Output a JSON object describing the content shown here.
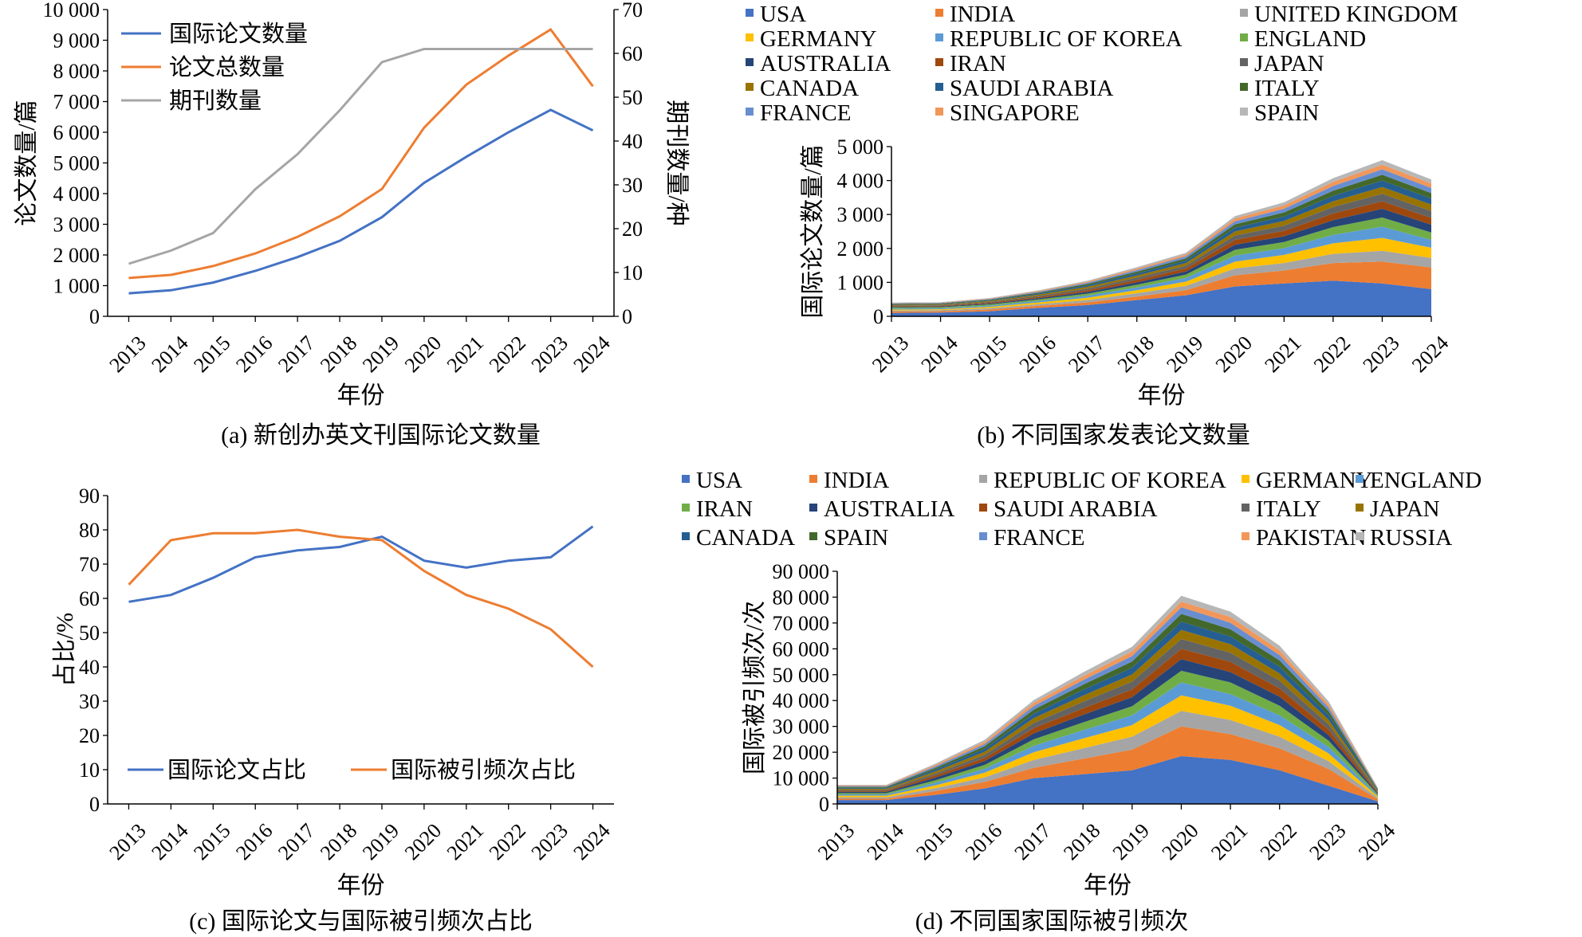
{
  "figure": {
    "background": "#ffffff"
  },
  "chart_data": [
    {
      "id": "a",
      "type": "line",
      "caption": "(a) 新创办英文刊国际论文数量",
      "xlabel": "年份",
      "ylabel": "论文数量/篇",
      "y2label": "期刊数量/种",
      "x": [
        "2013",
        "2014",
        "2015",
        "2016",
        "2017",
        "2018",
        "2019",
        "2020",
        "2021",
        "2022",
        "2023",
        "2024"
      ],
      "ylim": [
        0,
        10000
      ],
      "yticks": [
        0,
        1000,
        2000,
        3000,
        4000,
        5000,
        6000,
        7000,
        8000,
        9000,
        10000
      ],
      "yticklabels": [
        "0",
        "1 000",
        "2 000",
        "3 000",
        "4 000",
        "5 000",
        "6 000",
        "7 000",
        "8 000",
        "9 000",
        "10 000"
      ],
      "y2lim": [
        0,
        70
      ],
      "y2ticks": [
        0,
        10,
        20,
        30,
        40,
        50,
        60,
        70
      ],
      "y2ticklabels": [
        "0",
        "10",
        "20",
        "30",
        "40",
        "50",
        "60",
        "70"
      ],
      "grid": false,
      "legend_position": "top-left",
      "series": [
        {
          "name": "国际论文数量",
          "axis": "left",
          "color": "#4472c4",
          "values": [
            750,
            850,
            1100,
            1480,
            1930,
            2460,
            3230,
            4350,
            5200,
            6000,
            6730,
            6060
          ]
        },
        {
          "name": "论文总数量",
          "axis": "left",
          "color": "#ed7d31",
          "values": [
            1250,
            1350,
            1640,
            2050,
            2590,
            3260,
            4150,
            6150,
            7550,
            8500,
            9350,
            7500
          ]
        },
        {
          "name": "期刊数量",
          "axis": "right",
          "color": "#a5a5a5",
          "values": [
            12,
            15,
            19,
            29,
            37,
            47,
            58,
            61,
            61,
            61,
            61,
            61
          ]
        }
      ]
    },
    {
      "id": "b",
      "type": "area",
      "stacked": true,
      "caption": "(b) 不同国家发表论文数量",
      "xlabel": "年份",
      "ylabel": "国际论文数量/篇",
      "x": [
        "2013",
        "2014",
        "2015",
        "2016",
        "2017",
        "2018",
        "2019",
        "2020",
        "2021",
        "2022",
        "2023",
        "2024"
      ],
      "ylim": [
        0,
        5000
      ],
      "yticks": [
        0,
        1000,
        2000,
        3000,
        4000,
        5000
      ],
      "yticklabels": [
        "0",
        "1 000",
        "2 000",
        "3 000",
        "4 000",
        "5 000"
      ],
      "grid": false,
      "legend_position": "top",
      "series": [
        {
          "name": "USA",
          "color": "#4472c4",
          "values": [
            100,
            110,
            150,
            250,
            330,
            480,
            620,
            880,
            970,
            1050,
            970,
            800
          ]
        },
        {
          "name": "INDIA",
          "color": "#ed7d31",
          "values": [
            40,
            40,
            50,
            60,
            80,
            100,
            150,
            330,
            380,
            520,
            640,
            640
          ]
        },
        {
          "name": "UNITED KINGDOM",
          "color": "#a5a5a5",
          "values": [
            30,
            30,
            40,
            50,
            70,
            100,
            130,
            200,
            220,
            270,
            320,
            280
          ]
        },
        {
          "name": "GERMANY",
          "color": "#ffc000",
          "values": [
            30,
            30,
            40,
            50,
            70,
            90,
            120,
            200,
            240,
            310,
            380,
            300
          ]
        },
        {
          "name": "REPUBLIC OF KOREA",
          "color": "#5b9bd5",
          "values": [
            30,
            30,
            35,
            45,
            60,
            80,
            110,
            180,
            200,
            250,
            330,
            230
          ]
        },
        {
          "name": "ENGLAND",
          "color": "#70ad47",
          "values": [
            30,
            30,
            35,
            45,
            60,
            80,
            100,
            170,
            180,
            230,
            270,
            220
          ]
        },
        {
          "name": "AUSTRALIA",
          "color": "#264478",
          "values": [
            20,
            20,
            25,
            35,
            50,
            70,
            90,
            150,
            170,
            200,
            260,
            230
          ]
        },
        {
          "name": "IRAN",
          "color": "#9e480e",
          "values": [
            20,
            20,
            25,
            35,
            50,
            70,
            90,
            140,
            160,
            200,
            220,
            200
          ]
        },
        {
          "name": "JAPAN",
          "color": "#636363",
          "values": [
            20,
            20,
            25,
            35,
            50,
            70,
            80,
            130,
            150,
            190,
            220,
            200
          ]
        },
        {
          "name": "CANADA",
          "color": "#997300",
          "values": [
            20,
            20,
            25,
            35,
            50,
            60,
            80,
            120,
            140,
            170,
            200,
            190
          ]
        },
        {
          "name": "SAUDI ARABIA",
          "color": "#255e91",
          "values": [
            15,
            15,
            20,
            30,
            45,
            60,
            70,
            110,
            130,
            160,
            190,
            180
          ]
        },
        {
          "name": "ITALY",
          "color": "#43682b",
          "values": [
            15,
            15,
            20,
            30,
            40,
            55,
            70,
            100,
            120,
            150,
            170,
            160
          ]
        },
        {
          "name": "FRANCE",
          "color": "#698ed0",
          "values": [
            15,
            15,
            20,
            25,
            35,
            50,
            60,
            90,
            110,
            140,
            160,
            150
          ]
        },
        {
          "name": "SINGAPORE",
          "color": "#f1975a",
          "values": [
            10,
            10,
            15,
            20,
            30,
            40,
            50,
            80,
            100,
            120,
            140,
            130
          ]
        },
        {
          "name": "SPAIN",
          "color": "#b7b7b7",
          "values": [
            10,
            10,
            15,
            20,
            30,
            40,
            50,
            70,
            90,
            110,
            130,
            120
          ]
        }
      ]
    },
    {
      "id": "c",
      "type": "line",
      "caption": "(c) 国际论文与国际被引频次占比",
      "xlabel": "年份",
      "ylabel": "占比/%",
      "x": [
        "2013",
        "2014",
        "2015",
        "2016",
        "2017",
        "2018",
        "2019",
        "2020",
        "2021",
        "2022",
        "2023",
        "2024"
      ],
      "ylim": [
        0,
        90
      ],
      "yticks": [
        0,
        10,
        20,
        30,
        40,
        50,
        60,
        70,
        80,
        90
      ],
      "yticklabels": [
        "0",
        "10",
        "20",
        "30",
        "40",
        "50",
        "60",
        "70",
        "80",
        "90"
      ],
      "grid": false,
      "legend_position": "bottom",
      "series": [
        {
          "name": "国际论文占比",
          "color": "#4472c4",
          "values": [
            59,
            61,
            66,
            72,
            74,
            75,
            78,
            71,
            69,
            71,
            72,
            81
          ]
        },
        {
          "name": "国际被引频次占比",
          "color": "#ed7d31",
          "values": [
            64,
            77,
            79,
            79,
            80,
            78,
            77,
            68,
            61,
            57,
            51,
            40
          ]
        }
      ]
    },
    {
      "id": "d",
      "type": "area",
      "stacked": true,
      "caption": "(d) 不同国家国际被引频次",
      "xlabel": "年份",
      "ylabel": "国际被引频次/次",
      "x": [
        "2013",
        "2014",
        "2015",
        "2016",
        "2017",
        "2018",
        "2019",
        "2020",
        "2021",
        "2022",
        "2023",
        "2024"
      ],
      "ylim": [
        0,
        90000
      ],
      "yticks": [
        0,
        10000,
        20000,
        30000,
        40000,
        50000,
        60000,
        70000,
        80000,
        90000
      ],
      "yticklabels": [
        "0",
        "10 000",
        "20 000",
        "30 000",
        "40 000",
        "50 000",
        "60 000",
        "70 000",
        "80 000",
        "90 000"
      ],
      "grid": false,
      "legend_position": "top",
      "series": [
        {
          "name": "USA",
          "color": "#4472c4",
          "values": [
            1500,
            1500,
            3500,
            6000,
            10000,
            11500,
            13000,
            18500,
            17000,
            13000,
            7000,
            1000
          ]
        },
        {
          "name": "INDIA",
          "color": "#ed7d31",
          "values": [
            500,
            500,
            1500,
            2500,
            4000,
            6000,
            8000,
            11500,
            10000,
            8500,
            6500,
            800
          ]
        },
        {
          "name": "REPUBLIC OF KOREA",
          "color": "#a5a5a5",
          "values": [
            600,
            600,
            1100,
            1800,
            3000,
            4000,
            5000,
            6000,
            5500,
            4500,
            3000,
            500
          ]
        },
        {
          "name": "GERMANY",
          "color": "#ffc000",
          "values": [
            600,
            600,
            1100,
            1800,
            3000,
            3800,
            4500,
            6000,
            5500,
            4500,
            3000,
            500
          ]
        },
        {
          "name": "ENGLAND",
          "color": "#5b9bd5",
          "values": [
            500,
            500,
            1000,
            1500,
            2500,
            3200,
            3800,
            5000,
            4500,
            3800,
            2500,
            400
          ]
        },
        {
          "name": "IRAN",
          "color": "#70ad47",
          "values": [
            500,
            500,
            1000,
            1500,
            2500,
            3000,
            3500,
            4500,
            4500,
            3700,
            2400,
            400
          ]
        },
        {
          "name": "AUSTRALIA",
          "color": "#264478",
          "values": [
            500,
            500,
            1000,
            1500,
            2300,
            3000,
            3500,
            4500,
            4000,
            3500,
            2200,
            400
          ]
        },
        {
          "name": "SAUDI ARABIA",
          "color": "#9e480e",
          "values": [
            400,
            400,
            800,
            1200,
            2000,
            2500,
            3000,
            4000,
            4000,
            3200,
            2100,
            350
          ]
        },
        {
          "name": "ITALY",
          "color": "#636363",
          "values": [
            400,
            400,
            800,
            1200,
            2000,
            2500,
            3000,
            3800,
            3500,
            3000,
            2000,
            350
          ]
        },
        {
          "name": "JAPAN",
          "color": "#997300",
          "values": [
            400,
            400,
            800,
            1200,
            1900,
            2400,
            2800,
            3500,
            3300,
            2800,
            1800,
            300
          ]
        },
        {
          "name": "CANADA",
          "color": "#255e91",
          "values": [
            350,
            350,
            700,
            1100,
            1700,
            2200,
            2600,
            3200,
            3000,
            2600,
            1700,
            300
          ]
        },
        {
          "name": "SPAIN",
          "color": "#43682b",
          "values": [
            350,
            350,
            700,
            1000,
            1600,
            2000,
            2400,
            3000,
            2800,
            2400,
            1600,
            300
          ]
        },
        {
          "name": "FRANCE",
          "color": "#698ed0",
          "values": [
            300,
            300,
            600,
            900,
            1400,
            1800,
            2100,
            2600,
            2500,
            2100,
            1400,
            250
          ]
        },
        {
          "name": "PAKISTAN",
          "color": "#f1975a",
          "values": [
            250,
            250,
            500,
            800,
            1200,
            1500,
            1800,
            2200,
            2200,
            1800,
            1200,
            250
          ]
        },
        {
          "name": "RUSSIA",
          "color": "#b7b7b7",
          "values": [
            250,
            250,
            500,
            800,
            1100,
            1500,
            1800,
            2200,
            2100,
            1800,
            1200,
            200
          ]
        }
      ]
    }
  ]
}
